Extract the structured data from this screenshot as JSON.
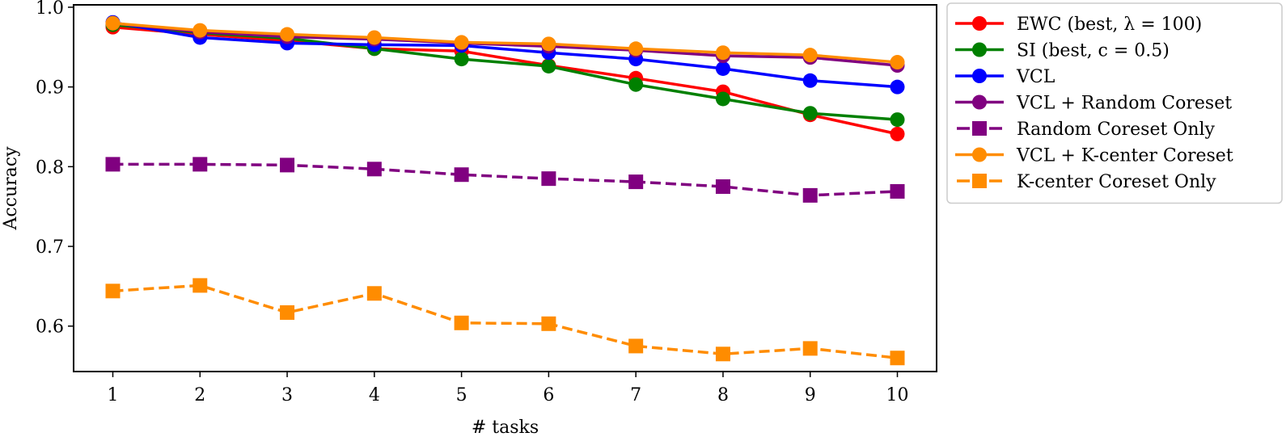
{
  "chart_data": {
    "type": "line",
    "title": "",
    "xlabel": "# tasks",
    "ylabel": "Accuracy",
    "x": [
      1,
      2,
      3,
      4,
      5,
      6,
      7,
      8,
      9,
      10
    ],
    "xticks": [
      "1",
      "2",
      "3",
      "4",
      "5",
      "6",
      "7",
      "8",
      "9",
      "10"
    ],
    "yticks": [
      "0.6",
      "0.7",
      "0.8",
      "0.9",
      "1.0"
    ],
    "ytick_values": [
      0.6,
      0.7,
      0.8,
      0.9,
      1.0
    ],
    "xlim": [
      0.55,
      10.45
    ],
    "ylim": [
      0.543,
      1.003
    ],
    "grid": false,
    "legend_position": "outside-right-top",
    "series": [
      {
        "name": "EWC (best, λ = 100)",
        "color": "#ff0000",
        "linestyle": "solid",
        "marker": "circle",
        "values": [
          0.975,
          0.966,
          0.958,
          0.948,
          0.945,
          0.927,
          0.911,
          0.894,
          0.865,
          0.841
        ]
      },
      {
        "name": "SI (best, c = 0.5)",
        "color": "#008000",
        "linestyle": "solid",
        "marker": "circle",
        "values": [
          0.978,
          0.968,
          0.961,
          0.948,
          0.935,
          0.926,
          0.903,
          0.885,
          0.867,
          0.859
        ]
      },
      {
        "name": "VCL",
        "color": "#0000ff",
        "linestyle": "solid",
        "marker": "circle",
        "values": [
          0.981,
          0.962,
          0.955,
          0.953,
          0.952,
          0.943,
          0.935,
          0.923,
          0.908,
          0.9
        ]
      },
      {
        "name": "VCL + Random Coreset",
        "color": "#800080",
        "linestyle": "solid",
        "marker": "circle",
        "values": [
          0.98,
          0.969,
          0.963,
          0.96,
          0.955,
          0.951,
          0.946,
          0.939,
          0.937,
          0.927
        ]
      },
      {
        "name": "Random Coreset Only",
        "color": "#800080",
        "linestyle": "dashed",
        "marker": "square",
        "values": [
          0.803,
          0.803,
          0.802,
          0.797,
          0.79,
          0.785,
          0.781,
          0.775,
          0.764,
          0.769
        ]
      },
      {
        "name": "VCL + K-center Coreset",
        "color": "#ff8c00",
        "linestyle": "solid",
        "marker": "circle",
        "values": [
          0.98,
          0.971,
          0.966,
          0.962,
          0.956,
          0.954,
          0.948,
          0.943,
          0.94,
          0.931
        ]
      },
      {
        "name": "K-center Coreset Only",
        "color": "#ff8c00",
        "linestyle": "dashed",
        "marker": "square",
        "values": [
          0.644,
          0.651,
          0.617,
          0.641,
          0.604,
          0.603,
          0.575,
          0.565,
          0.572,
          0.56
        ]
      }
    ]
  }
}
